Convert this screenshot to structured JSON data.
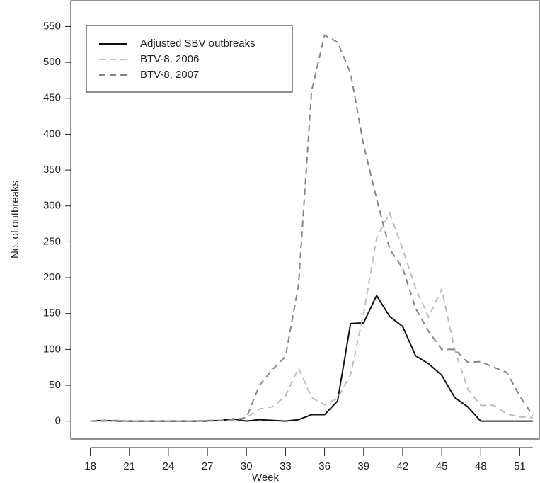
{
  "chart_data": {
    "type": "line",
    "x_label": "Week",
    "y_label": "No. of outbreaks",
    "x": [
      18,
      19,
      20,
      21,
      22,
      23,
      24,
      25,
      26,
      27,
      28,
      29,
      30,
      31,
      32,
      33,
      34,
      35,
      36,
      37,
      38,
      39,
      40,
      41,
      42,
      43,
      44,
      45,
      46,
      47,
      48,
      49,
      50,
      51,
      52
    ],
    "series": [
      {
        "name": "Adjusted SBV outbreaks",
        "color": "#111111",
        "dash": "solid",
        "values": [
          0,
          1,
          0,
          0,
          0,
          0,
          0,
          0,
          0,
          0,
          1,
          3,
          0,
          2,
          1,
          0,
          2,
          9,
          9,
          28,
          136,
          137,
          175,
          146,
          132,
          91,
          80,
          64,
          33,
          20,
          0,
          0,
          0,
          0,
          0
        ]
      },
      {
        "name": "BTV-8, 2006",
        "color": "#bdbdbd",
        "dash": "dashed",
        "values": [
          0,
          1,
          0,
          0,
          0,
          0,
          0,
          0,
          0,
          0,
          1,
          1,
          5,
          17,
          20,
          35,
          74,
          33,
          23,
          32,
          65,
          150,
          255,
          290,
          240,
          185,
          145,
          184,
          100,
          45,
          22,
          22,
          10,
          6,
          5
        ]
      },
      {
        "name": "BTV-8, 2007",
        "color": "#858585",
        "dash": "dashed",
        "values": [
          0,
          0,
          1,
          0,
          0,
          0,
          0,
          0,
          0,
          1,
          1,
          2,
          5,
          50,
          72,
          90,
          190,
          460,
          538,
          528,
          485,
          385,
          310,
          240,
          213,
          157,
          125,
          100,
          100,
          82,
          83,
          75,
          68,
          35,
          8
        ]
      }
    ],
    "xlim": [
      16.5,
      52.5
    ],
    "xticks": [
      18,
      21,
      24,
      27,
      30,
      33,
      36,
      39,
      42,
      45,
      48,
      51
    ],
    "ylim": [
      -25,
      586
    ],
    "yticks": [
      0,
      50,
      100,
      150,
      200,
      250,
      300,
      350,
      400,
      450,
      500,
      550
    ],
    "legend": "top-left"
  }
}
